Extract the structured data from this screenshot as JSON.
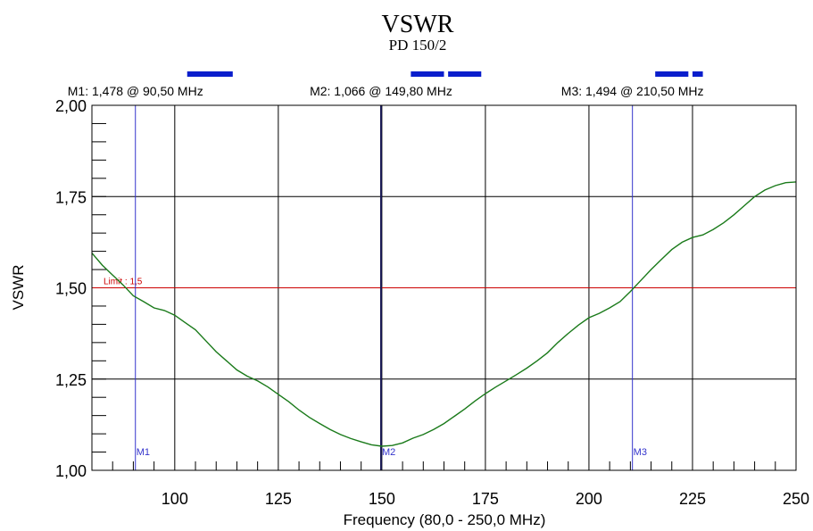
{
  "chart_data": {
    "type": "line",
    "title": "VSWR",
    "subtitle": "PD 150/2",
    "xlabel": "Frequency (80,0 - 250,0 MHz)",
    "ylabel": "VSWR",
    "xlim": [
      80,
      250
    ],
    "ylim": [
      1.0,
      2.0
    ],
    "x_ticks": [
      100,
      125,
      150,
      175,
      200,
      225,
      250
    ],
    "x_tick_labels": [
      "100",
      "125",
      "150",
      "175",
      "200",
      "225",
      "250"
    ],
    "y_ticks": [
      1.0,
      1.25,
      1.5,
      1.75,
      2.0
    ],
    "y_tick_labels": [
      "1,00",
      "1,25",
      "1,50",
      "1,75",
      "2,00"
    ],
    "grid": true,
    "colors": {
      "series": "#1a7a1a",
      "limit": "#cc0000",
      "marker": "#3333cc",
      "band": "#0a1ecc"
    },
    "limit": {
      "label": "Limit : 1,5",
      "value": 1.5
    },
    "markers": [
      {
        "name": "M1",
        "x": 90.5,
        "y": 1.478,
        "readout": "M1: 1,478  @ 90,50 MHz"
      },
      {
        "name": "M2",
        "x": 149.8,
        "y": 1.066,
        "readout": "M2: 1,066  @ 149,80 MHz"
      },
      {
        "name": "M3",
        "x": 210.5,
        "y": 1.494,
        "readout": "M3: 1,494  @ 210,50 MHz"
      }
    ],
    "bands": [
      {
        "x0": 103,
        "x1": 114
      },
      {
        "x0": 157,
        "x1": 165
      },
      {
        "x0": 166,
        "x1": 174
      },
      {
        "x0": 216,
        "x1": 224
      },
      {
        "x0": 225,
        "x1": 227.5
      }
    ],
    "series": [
      {
        "x": [
          80,
          82.5,
          85,
          87.5,
          90,
          92.5,
          95,
          97.5,
          100,
          102.5,
          105,
          107.5,
          110,
          112.5,
          115,
          117.5,
          120,
          122.5,
          125,
          127.5,
          130,
          132.5,
          135,
          137.5,
          140,
          142.5,
          145,
          147.5,
          150,
          152.5,
          155,
          157.5,
          160,
          162.5,
          165,
          167.5,
          170,
          172.5,
          175,
          177.5,
          180,
          182.5,
          185,
          187.5,
          190,
          192.5,
          195,
          197.5,
          200,
          202.5,
          205,
          207.5,
          210,
          212.5,
          215,
          217.5,
          220,
          222.5,
          225,
          227.5,
          230,
          232.5,
          235,
          237.5,
          240,
          242.5,
          245,
          247.5,
          250
        ],
        "y": [
          1.595,
          1.562,
          1.535,
          1.508,
          1.478,
          1.462,
          1.445,
          1.438,
          1.425,
          1.405,
          1.385,
          1.355,
          1.325,
          1.3,
          1.275,
          1.258,
          1.245,
          1.228,
          1.208,
          1.188,
          1.165,
          1.145,
          1.128,
          1.112,
          1.098,
          1.087,
          1.078,
          1.07,
          1.066,
          1.068,
          1.075,
          1.088,
          1.098,
          1.112,
          1.128,
          1.148,
          1.168,
          1.19,
          1.21,
          1.228,
          1.245,
          1.262,
          1.28,
          1.3,
          1.322,
          1.35,
          1.375,
          1.398,
          1.418,
          1.43,
          1.445,
          1.462,
          1.49,
          1.52,
          1.55,
          1.578,
          1.605,
          1.625,
          1.638,
          1.645,
          1.66,
          1.678,
          1.7,
          1.725,
          1.75,
          1.768,
          1.78,
          1.788,
          1.79
        ]
      }
    ]
  }
}
